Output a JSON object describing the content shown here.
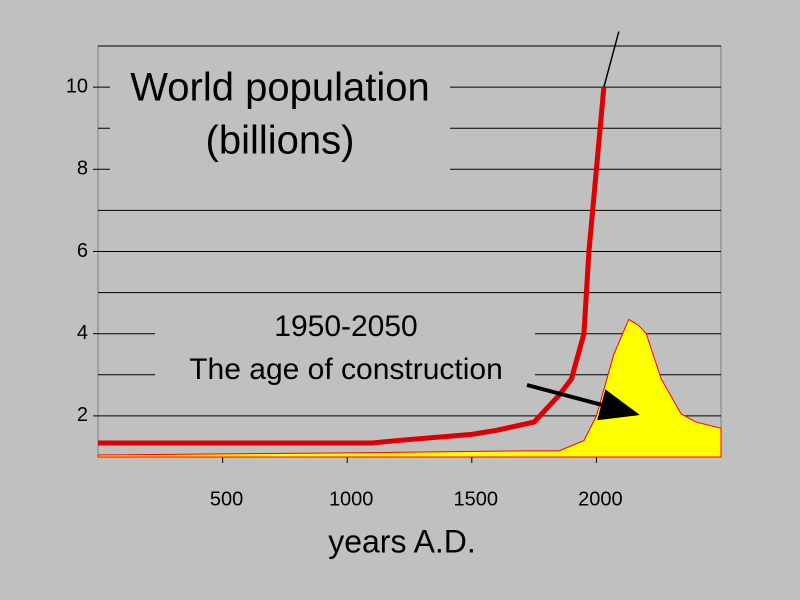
{
  "chart_data": {
    "type": "line",
    "title": [
      "World population",
      "(billions)"
    ],
    "x_label": "years A.D.",
    "annotation": [
      "1950-2050",
      "The age of construction"
    ],
    "xlim": [
      0,
      2500
    ],
    "xticks": [
      500,
      1000,
      1500,
      2000
    ],
    "ylim": [
      1,
      11
    ],
    "yticks": [
      2,
      4,
      6,
      8,
      10
    ],
    "minor_yticks": [
      3,
      5,
      7,
      9,
      11
    ],
    "grid": true,
    "series": [
      {
        "kind": "area",
        "color": "#ffff00",
        "edge": "#ff0000",
        "x": [
          0,
          1000,
          1700,
          1850,
          1950,
          2000,
          2070,
          2130,
          2170,
          2200,
          2260,
          2340,
          2400,
          2500
        ],
        "values": [
          1.05,
          1.1,
          1.15,
          1.15,
          1.4,
          2,
          3.5,
          4.35,
          4.2,
          4,
          2.9,
          2.05,
          1.85,
          1.7
        ]
      },
      {
        "kind": "line",
        "color": "#dd0000",
        "width": 5,
        "x": [
          0,
          1100,
          1200,
          1500,
          1600,
          1750,
          1850,
          1900,
          1950,
          1970,
          2000,
          2030
        ],
        "values": [
          1.34,
          1.34,
          1.4,
          1.55,
          1.65,
          1.85,
          2.5,
          2.9,
          4,
          6,
          8,
          10
        ]
      },
      {
        "kind": "line",
        "color": "#000000",
        "width": 1.5,
        "x": [
          2030,
          2090
        ],
        "values": [
          10,
          11.35
        ]
      }
    ]
  }
}
